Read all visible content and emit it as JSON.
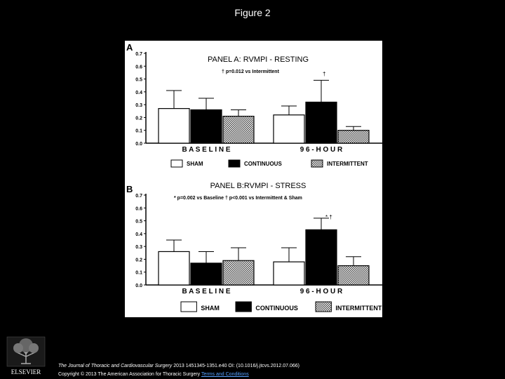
{
  "page": {
    "title": "Figure 2"
  },
  "footer": {
    "journal": "The Journal of Thoracic and Cardiovascular Surgery",
    "citation": " 2013 1451345-1351.e40 OI: (10.1016/j.jtcvs.2012.07.066)",
    "copyright": "Copyright © 2013 The American Association for Thoracic Surgery",
    "terms": "Terms and Conditions"
  },
  "logo": {
    "text": "ELSEVIER"
  },
  "colors": {
    "sham": "#ffffff",
    "continuous": "#000000",
    "intermittent": "#bdbdbd"
  },
  "chart_data": [
    {
      "type": "bar",
      "panel_letter": "A",
      "title": "PANEL A: RVMPI - RESTING",
      "annotations": [
        "† p=0.012 vs Intermittent",
        "†"
      ],
      "categories": [
        "B A S E L I N E",
        "9 6 - H O U R"
      ],
      "y_ticks": [
        "0.0",
        "0.1",
        "0.2",
        "0.3",
        "0.4",
        "0.5",
        "0.6",
        "0.7"
      ],
      "ylim": [
        0,
        0.7
      ],
      "series": [
        {
          "name": "SHAM",
          "values": [
            0.27,
            0.22
          ],
          "errors": [
            0.14,
            0.07
          ]
        },
        {
          "name": "CONTINUOUS",
          "values": [
            0.26,
            0.32
          ],
          "errors": [
            0.09,
            0.17
          ]
        },
        {
          "name": "INTERMITTENT",
          "values": [
            0.21,
            0.1
          ],
          "errors": [
            0.05,
            0.03
          ]
        }
      ]
    },
    {
      "type": "bar",
      "panel_letter": "B",
      "title": "PANEL B:RVMPI - STRESS",
      "annotations": [
        "* p=0.002 vs Baseline    † p<0.001 vs Intermittent & Sham",
        "* †"
      ],
      "categories": [
        "B A S E L I N E",
        "9 6 - H O U R"
      ],
      "y_ticks": [
        "0.0",
        "0.1",
        "0.2",
        "0.3",
        "0.4",
        "0.5",
        "0.6",
        "0.7"
      ],
      "ylim": [
        0,
        0.7
      ],
      "series": [
        {
          "name": "SHAM",
          "values": [
            0.26,
            0.18
          ],
          "errors": [
            0.09,
            0.11
          ]
        },
        {
          "name": "CONTINUOUS",
          "values": [
            0.17,
            0.43
          ],
          "errors": [
            0.09,
            0.09
          ]
        },
        {
          "name": "INTERMITTENT",
          "values": [
            0.19,
            0.15
          ],
          "errors": [
            0.1,
            0.07
          ]
        }
      ]
    }
  ]
}
